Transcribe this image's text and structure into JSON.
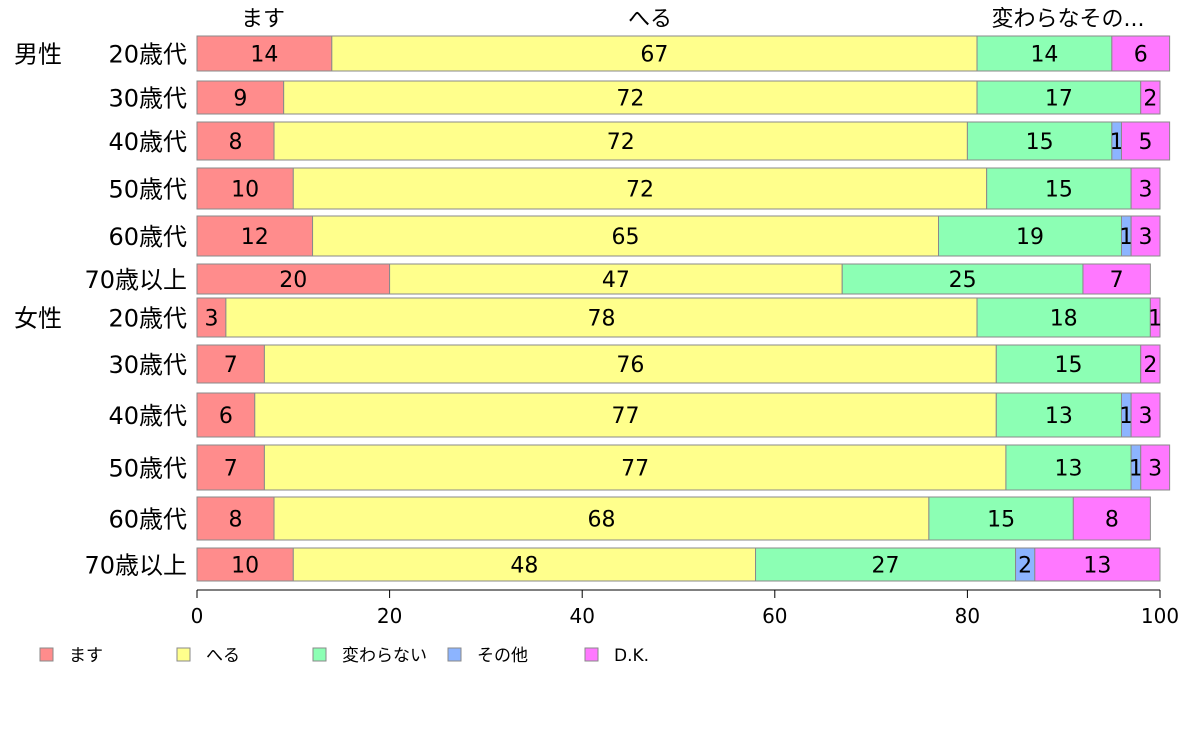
{
  "chart_data": {
    "type": "bar",
    "orientation": "horizontal",
    "stacked": true,
    "xlim": [
      0,
      100
    ],
    "xticks": [
      0,
      20,
      40,
      60,
      80,
      100
    ],
    "xtick_labels": [
      "0",
      "20",
      "40",
      "60",
      "80",
      "100"
    ],
    "top_labels": [
      "ます",
      "へる",
      "変わらなその..."
    ],
    "groups": [
      {
        "label": "男性",
        "rows": [
          0,
          1,
          2,
          3,
          4,
          5
        ]
      },
      {
        "label": "女性",
        "rows": [
          6,
          7,
          8,
          9,
          10,
          11
        ]
      }
    ],
    "categories": [
      "20歳代",
      "30歳代",
      "40歳代",
      "50歳代",
      "60歳代",
      "70歳以上",
      "20歳代",
      "30歳代",
      "40歳代",
      "50歳代",
      "60歳代",
      "70歳以上"
    ],
    "series": [
      {
        "name": "ます",
        "color": "#ff8c8c",
        "values": [
          14,
          9,
          8,
          10,
          12,
          20,
          3,
          7,
          6,
          7,
          8,
          10
        ]
      },
      {
        "name": "へる",
        "color": "#ffff8c",
        "values": [
          67,
          72,
          72,
          72,
          65,
          47,
          78,
          76,
          77,
          77,
          68,
          48
        ]
      },
      {
        "name": "変わらない",
        "color": "#8cffb4",
        "values": [
          14,
          17,
          15,
          15,
          19,
          25,
          18,
          15,
          13,
          13,
          15,
          27
        ]
      },
      {
        "name": "その他",
        "color": "#8cb4ff",
        "values": [
          0,
          0,
          1,
          0,
          1,
          0,
          0,
          0,
          1,
          1,
          0,
          2
        ]
      },
      {
        "name": "D.K.",
        "color": "#ff78ff",
        "values": [
          6,
          2,
          5,
          3,
          3,
          7,
          1,
          2,
          3,
          3,
          8,
          13
        ]
      }
    ],
    "data_labels": [
      [
        "14",
        "67",
        "14",
        "",
        "6"
      ],
      [
        "9",
        "72",
        "17",
        "",
        "2"
      ],
      [
        "8",
        "72",
        "15",
        "1",
        "5"
      ],
      [
        "10",
        "72",
        "15",
        "",
        "3"
      ],
      [
        "12",
        "65",
        "19",
        "1",
        "3"
      ],
      [
        "20",
        "47",
        "25",
        "",
        "7"
      ],
      [
        "3",
        "78",
        "18",
        "",
        "1"
      ],
      [
        "7",
        "76",
        "15",
        "",
        "2"
      ],
      [
        "6",
        "77",
        "13",
        "1",
        "3"
      ],
      [
        "7",
        "77",
        "13",
        "1",
        "3"
      ],
      [
        "8",
        "68",
        "15",
        "",
        "8"
      ],
      [
        "10",
        "48",
        "27",
        "2",
        "13"
      ]
    ],
    "legend_position": "bottom",
    "grid": false
  }
}
